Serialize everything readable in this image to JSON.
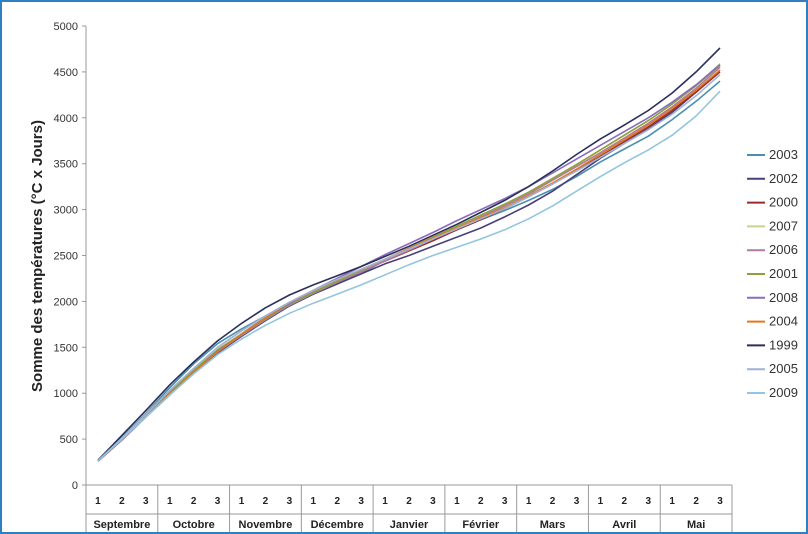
{
  "chart_data": {
    "type": "line",
    "title": "",
    "xlabel": "",
    "ylabel": "Somme des températures (°C x Jours)",
    "ylim": [
      0,
      5000
    ],
    "yticks": [
      0,
      500,
      1000,
      1500,
      2000,
      2500,
      3000,
      3500,
      4000,
      4500,
      5000
    ],
    "months": [
      "Septembre",
      "Octobre",
      "Novembre",
      "Décembre",
      "Janvier",
      "Février",
      "Mars",
      "Avril",
      "Mai"
    ],
    "dekads": [
      "1",
      "2",
      "3"
    ],
    "grid": false,
    "legend_position": "right",
    "series": [
      {
        "name": "2003",
        "color": "#4a8fb0",
        "values": [
          270,
          520,
          780,
          1060,
          1320,
          1540,
          1700,
          1840,
          1990,
          2100,
          2210,
          2300,
          2450,
          2560,
          2670,
          2780,
          2890,
          2990,
          3100,
          3220,
          3360,
          3520,
          3660,
          3800,
          3980,
          4180,
          4400
        ]
      },
      {
        "name": "2002",
        "color": "#4a3f7a",
        "values": [
          260,
          490,
          740,
          980,
          1230,
          1440,
          1620,
          1790,
          1950,
          2080,
          2190,
          2300,
          2410,
          2500,
          2600,
          2700,
          2800,
          2920,
          3050,
          3200,
          3380,
          3560,
          3720,
          3880,
          4060,
          4280,
          4520
        ]
      },
      {
        "name": "2000",
        "color": "#9b2b2b",
        "values": [
          265,
          500,
          760,
          1000,
          1240,
          1470,
          1650,
          1820,
          1980,
          2100,
          2220,
          2330,
          2440,
          2550,
          2660,
          2780,
          2890,
          3010,
          3140,
          3280,
          3430,
          3580,
          3740,
          3900,
          4080,
          4280,
          4500
        ]
      },
      {
        "name": "2007",
        "color": "#c9d48a",
        "values": [
          265,
          510,
          770,
          1020,
          1260,
          1480,
          1650,
          1810,
          1960,
          2090,
          2210,
          2330,
          2450,
          2560,
          2680,
          2800,
          2910,
          3040,
          3180,
          3340,
          3490,
          3650,
          3810,
          3970,
          4150,
          4350,
          4590
        ]
      },
      {
        "name": "2006",
        "color": "#b07a9e",
        "values": [
          260,
          500,
          750,
          1000,
          1240,
          1450,
          1630,
          1800,
          1960,
          2090,
          2210,
          2320,
          2440,
          2560,
          2680,
          2800,
          2920,
          3040,
          3170,
          3320,
          3470,
          3620,
          3780,
          3940,
          4120,
          4320,
          4550
        ]
      },
      {
        "name": "2001",
        "color": "#8da33a",
        "values": [
          270,
          500,
          760,
          1010,
          1250,
          1470,
          1640,
          1810,
          1970,
          2100,
          2220,
          2340,
          2460,
          2580,
          2700,
          2820,
          2940,
          3060,
          3190,
          3340,
          3490,
          3650,
          3810,
          3970,
          4150,
          4350,
          4570
        ]
      },
      {
        "name": "2008",
        "color": "#8a6bbd",
        "values": [
          260,
          490,
          740,
          990,
          1230,
          1460,
          1640,
          1820,
          1980,
          2120,
          2250,
          2380,
          2510,
          2630,
          2750,
          2880,
          3000,
          3120,
          3250,
          3400,
          3550,
          3700,
          3850,
          4000,
          4170,
          4360,
          4580
        ]
      },
      {
        "name": "2004",
        "color": "#e0781e",
        "values": [
          265,
          495,
          745,
          990,
          1230,
          1450,
          1640,
          1820,
          1990,
          2120,
          2240,
          2350,
          2460,
          2580,
          2690,
          2800,
          2910,
          3020,
          3150,
          3290,
          3440,
          3600,
          3760,
          3920,
          4100,
          4300,
          4520
        ]
      },
      {
        "name": "1999",
        "color": "#2b2f5c",
        "values": [
          270,
          540,
          810,
          1090,
          1340,
          1570,
          1760,
          1930,
          2070,
          2180,
          2280,
          2380,
          2490,
          2600,
          2720,
          2840,
          2970,
          3100,
          3250,
          3420,
          3600,
          3770,
          3920,
          4080,
          4270,
          4500,
          4760
        ]
      },
      {
        "name": "2005",
        "color": "#9fb3d6",
        "values": [
          265,
          510,
          770,
          1030,
          1270,
          1500,
          1680,
          1840,
          1990,
          2120,
          2240,
          2350,
          2460,
          2570,
          2680,
          2790,
          2900,
          3010,
          3140,
          3280,
          3420,
          3570,
          3720,
          3870,
          4040,
          4240,
          4470
        ]
      },
      {
        "name": "2009",
        "color": "#92c5e0",
        "values": [
          265,
          500,
          740,
          980,
          1210,
          1420,
          1590,
          1740,
          1870,
          1980,
          2080,
          2180,
          2290,
          2400,
          2500,
          2590,
          2680,
          2780,
          2900,
          3040,
          3200,
          3360,
          3510,
          3650,
          3810,
          4020,
          4290
        ]
      }
    ]
  }
}
